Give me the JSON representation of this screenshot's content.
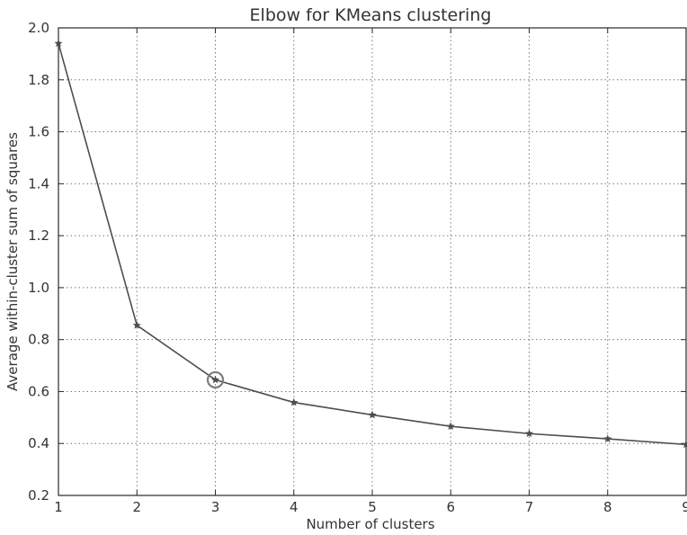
{
  "chart_data": {
    "type": "line",
    "title": "Elbow for KMeans clustering",
    "xlabel": "Number of clusters",
    "ylabel": "Average within-cluster sum of squares",
    "x": [
      1,
      2,
      3,
      4,
      5,
      6,
      7,
      8,
      9
    ],
    "xlim": [
      1,
      9
    ],
    "ylim": [
      0.2,
      2.0
    ],
    "x_ticks": [
      1,
      2,
      3,
      4,
      5,
      6,
      7,
      8,
      9
    ],
    "y_ticks": [
      0.2,
      0.4,
      0.6,
      0.8,
      1.0,
      1.2,
      1.4,
      1.6,
      1.8,
      2.0
    ],
    "x_tick_labels": [
      "1",
      "2",
      "3",
      "4",
      "5",
      "6",
      "7",
      "8",
      "9"
    ],
    "y_tick_labels": [
      "0.2",
      "0.4",
      "0.6",
      "0.8",
      "1.0",
      "1.2",
      "1.4",
      "1.6",
      "1.8",
      "2.0"
    ],
    "grid": true,
    "series": [
      {
        "values": [
          1.94,
          0.855,
          0.645,
          0.558,
          0.51,
          0.466,
          0.438,
          0.418,
          0.396
        ],
        "marker": "star",
        "color": "#4d4d4d"
      }
    ],
    "annotations": [
      {
        "kind": "circle",
        "x": 3,
        "y": 0.645,
        "color": "#7d7d7d"
      }
    ]
  }
}
